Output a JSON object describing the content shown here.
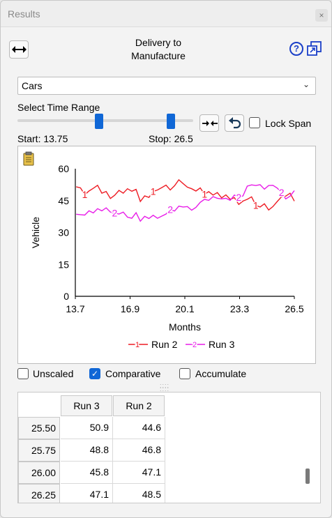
{
  "window": {
    "title": "Results",
    "close_glyph": "×"
  },
  "header": {
    "title_line1": "Delivery to",
    "title_line2": "Manufacture",
    "expand_icon": "horizontal-arrows-icon",
    "help_glyph": "?",
    "popout_icon": "popout-icon"
  },
  "variable_select": {
    "selected": "Cars",
    "arrow": "⌄"
  },
  "time_range": {
    "label": "Select Time Range",
    "start_text": "Start: 13.75",
    "stop_text": "Stop: 26.5",
    "start_fraction": 0.466,
    "stop_fraction": 0.873,
    "lock_label": "Lock Span",
    "lock_checked": false
  },
  "chart_data": {
    "type": "line",
    "xlabel": "Months",
    "ylabel": "Vehicle",
    "xlim": [
      13.7,
      26.5
    ],
    "ylim": [
      0,
      60
    ],
    "x_ticks": [
      "13.7",
      "16.9",
      "20.1",
      "23.3",
      "26.5"
    ],
    "y_ticks": [
      "60",
      "45",
      "30",
      "15",
      "0"
    ],
    "y_tick_values": [
      60,
      45,
      30,
      15,
      0
    ],
    "x_tick_values": [
      13.7,
      16.9,
      20.1,
      23.3,
      26.5
    ],
    "legend_position": "bottom",
    "x": [
      13.75,
      14.0,
      14.25,
      14.5,
      14.75,
      15.0,
      15.25,
      15.5,
      15.75,
      16.0,
      16.25,
      16.5,
      16.75,
      17.0,
      17.25,
      17.5,
      17.75,
      18.0,
      18.25,
      18.5,
      18.75,
      19.0,
      19.25,
      19.5,
      19.75,
      20.0,
      20.25,
      20.5,
      20.75,
      21.0,
      21.25,
      21.5,
      21.75,
      22.0,
      22.25,
      22.5,
      22.75,
      23.0,
      23.25,
      23.5,
      23.75,
      24.0,
      24.25,
      24.5,
      24.75,
      25.0,
      25.25,
      25.5,
      25.75,
      26.0,
      26.25,
      26.5
    ],
    "series": [
      {
        "name": "Run 2",
        "marker": "1",
        "color": "#ee1c24",
        "values": [
          51.5,
          51.0,
          47.8,
          49.5,
          50.8,
          52.2,
          48.5,
          49.3,
          46.0,
          47.5,
          49.8,
          48.5,
          50.6,
          49.4,
          50.3,
          44.6,
          47.2,
          46.5,
          49.3,
          50.0,
          51.1,
          52.3,
          50.0,
          52.0,
          54.8,
          53.0,
          51.3,
          50.6,
          49.5,
          51.0,
          48.0,
          49.2,
          47.6,
          48.8,
          46.3,
          47.7,
          45.6,
          46.4,
          43.2,
          44.8,
          45.6,
          46.8,
          42.8,
          42.0,
          43.5,
          40.6,
          42.2,
          44.6,
          46.8,
          47.1,
          48.5,
          44.8
        ]
      },
      {
        "name": "Run 3",
        "marker": "2",
        "color": "#e81ce8",
        "values": [
          38.6,
          38.4,
          38.2,
          40.2,
          39.2,
          41.2,
          40.2,
          41.6,
          39.6,
          39.2,
          38.7,
          39.6,
          37.2,
          36.7,
          39.3,
          35.3,
          37.6,
          36.6,
          38.1,
          36.7,
          37.7,
          38.7,
          40.8,
          40.1,
          42.4,
          42.0,
          42.2,
          40.5,
          41.8,
          44.2,
          45.6,
          45.1,
          46.9,
          46.1,
          45.8,
          46.1,
          45.1,
          47.6,
          46.5,
          47.2,
          51.8,
          52.4,
          52.1,
          52.5,
          50.4,
          52.1,
          52.2,
          50.9,
          48.8,
          45.8,
          47.1,
          49.7
        ]
      }
    ],
    "marker_indices": [
      [
        2,
        18,
        30,
        42
      ],
      [
        9,
        22,
        38,
        48
      ]
    ]
  },
  "options": {
    "unscaled_label": "Unscaled",
    "unscaled_checked": false,
    "comparative_label": "Comparative",
    "comparative_checked": true,
    "accumulate_label": "Accumulate",
    "accumulate_checked": false,
    "check_glyph": "✓"
  },
  "table": {
    "columns": [
      "Run 3",
      "Run 2"
    ],
    "rows": [
      {
        "time": "25.50",
        "cells": [
          "50.9",
          "44.6"
        ]
      },
      {
        "time": "25.75",
        "cells": [
          "48.8",
          "46.8"
        ]
      },
      {
        "time": "26.00",
        "cells": [
          "45.8",
          "47.1"
        ]
      },
      {
        "time": "26.25",
        "cells": [
          "47.1",
          "48.5"
        ]
      }
    ]
  }
}
